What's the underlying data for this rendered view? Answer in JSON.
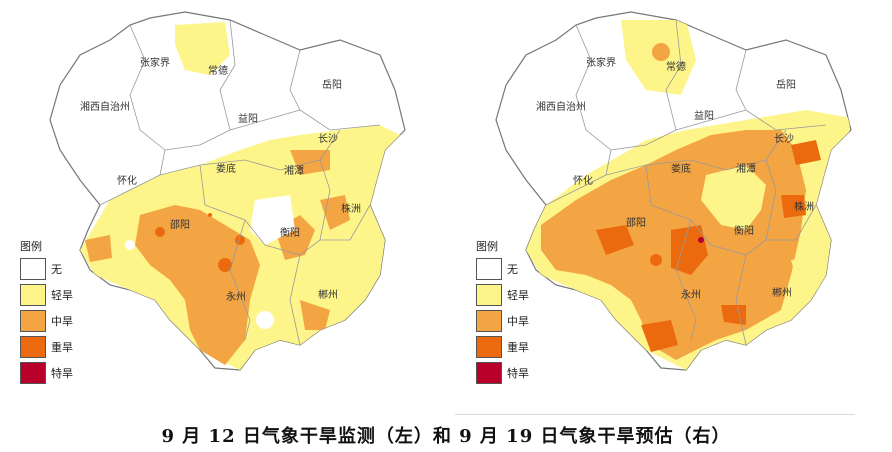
{
  "legend": {
    "title": "图例",
    "items": [
      {
        "label": "无",
        "color": "#ffffff"
      },
      {
        "label": "轻旱",
        "color": "#fdf58a"
      },
      {
        "label": "中旱",
        "color": "#f3a443"
      },
      {
        "label": "重旱",
        "color": "#ec6a0e"
      },
      {
        "label": "特旱",
        "color": "#b8002b"
      }
    ]
  },
  "cities": {
    "zhangjiajie": "张家界",
    "changde": "常德",
    "yueyang": "岳阳",
    "xiangxi": "湘西自治州",
    "yiyang": "益阳",
    "changsha": "长沙",
    "loudi": "娄底",
    "xiangtan": "湘潭",
    "huaihua": "怀化",
    "shaoyang": "邵阳",
    "hengyang": "衡阳",
    "zhuzhou": "株洲",
    "yongzhou": "永州",
    "chenzhou": "郴州"
  },
  "caption": "9 月 12 日气象干旱监测（左）和 9 月 19 日气象干旱预估（右）"
}
